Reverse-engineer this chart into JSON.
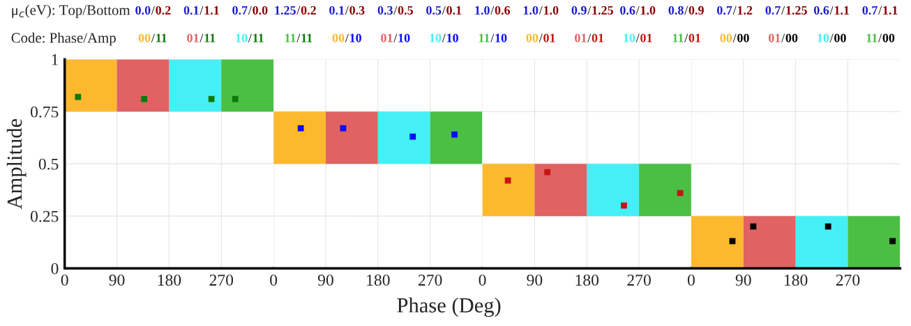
{
  "chart_data": [
    {
      "type": "scatter",
      "ylabel": "Amplitude",
      "xlim": [
        0,
        360
      ],
      "ylim": [
        0,
        1
      ],
      "xticks": [
        0,
        90,
        180,
        270
      ],
      "yticks": [
        0,
        0.25,
        0.5,
        0.75,
        1
      ],
      "grid": true,
      "marker": "square",
      "annotations": [
        "μ$_{c}$(eV): Top/Bottom",
        "0.0/0.2",
        "0.1/1.1",
        "0.7/0.0",
        "1.25/0.2",
        "0.1/0.3",
        "0.3/0.5",
        "0.5/0.1",
        "1.0/0.6",
        "1.0/1.0",
        "0.9/1.25",
        "0.6/1.0",
        "0.8/0.9",
        "0.7/1.2",
        "0.7/1.25",
        "0.6/1.1",
        "0.7/1.1",
        "Code: Phase/Amp",
        "00/11",
        "01/11",
        "10/11",
        "11/11",
        "00/10",
        "01/10",
        "10/10",
        "11/10",
        "00/01",
        "01/01",
        "10/01",
        "11/01",
        "00/00",
        "01/00",
        "10/00",
        "11/00"
      ],
      "series": [
        {
          "type": "bar",
          "x": [
            45,
            135,
            225,
            315
          ],
          "base": [
            0.75,
            0.75,
            0.75,
            0.75
          ],
          "values": [
            0.25,
            0.25,
            0.25,
            0.25
          ],
          "colors": [
            "#fdb92e",
            "#e06262",
            "#44f0f5",
            "#4abf44"
          ]
        },
        {
          "x": [
            23,
            137,
            253,
            294
          ],
          "values": [
            0.82,
            0.81,
            0.81,
            0.81
          ],
          "color": "#0b7a0b"
        }
      ]
    },
    {
      "type": "scatter",
      "xlabel": "Phase (Deg)",
      "xlim": [
        0,
        360
      ],
      "ylim": [
        0,
        1
      ],
      "xticks": [
        0,
        90,
        180,
        270
      ],
      "yticks": [
        0,
        0.25,
        0.5,
        0.75,
        1
      ],
      "grid": true,
      "marker": "square",
      "tick_labels": "x",
      "series": [
        {
          "type": "bar",
          "x": [
            45,
            135,
            225,
            315
          ],
          "base": [
            0.5,
            0.5,
            0.5,
            0.5
          ],
          "values": [
            0.25,
            0.25,
            0.25,
            0.25
          ],
          "colors": [
            "#fdb92e",
            "#e06262",
            "#44f0f5",
            "#4abf44"
          ]
        },
        {
          "x": [
            47,
            120,
            240,
            312
          ],
          "values": [
            0.67,
            0.67,
            0.63,
            0.64
          ],
          "color": "#0a0aff"
        }
      ]
    },
    {
      "type": "scatter",
      "xlim": [
        0,
        360
      ],
      "ylim": [
        0,
        1
      ],
      "xticks": [
        0,
        90,
        180,
        270
      ],
      "yticks": [
        0,
        0.25,
        0.5,
        0.75,
        1
      ],
      "grid": true,
      "marker": "square",
      "tick_labels": "x",
      "series": [
        {
          "type": "bar",
          "x": [
            45,
            135,
            225,
            315
          ],
          "base": [
            0.25,
            0.25,
            0.25,
            0.25
          ],
          "values": [
            0.25,
            0.25,
            0.25,
            0.25
          ],
          "colors": [
            "#fdb92e",
            "#e06262",
            "#44f0f5",
            "#4abf44"
          ]
        },
        {
          "x": [
            44,
            112,
            244,
            341
          ],
          "values": [
            0.42,
            0.46,
            0.3,
            0.36
          ],
          "color": "#c81414"
        }
      ]
    },
    {
      "type": "scatter",
      "xlim": [
        0,
        360
      ],
      "ylim": [
        0,
        1
      ],
      "xticks": [
        0,
        90,
        180,
        270
      ],
      "yticks": [
        0,
        0.25,
        0.5,
        0.75,
        1
      ],
      "grid": true,
      "marker": "square",
      "tick_labels": "x",
      "series": [
        {
          "type": "bar",
          "x": [
            45,
            135,
            225,
            315
          ],
          "base": [
            0,
            0,
            0,
            0
          ],
          "values": [
            0.25,
            0.25,
            0.25,
            0.25
          ],
          "colors": [
            "#fdb92e",
            "#e06262",
            "#44f0f5",
            "#4abf44"
          ]
        },
        {
          "x": [
            71,
            107,
            236,
            347
          ],
          "values": [
            0.13,
            0.2,
            0.2,
            0.13
          ],
          "color": "#000000"
        }
      ]
    }
  ]
}
